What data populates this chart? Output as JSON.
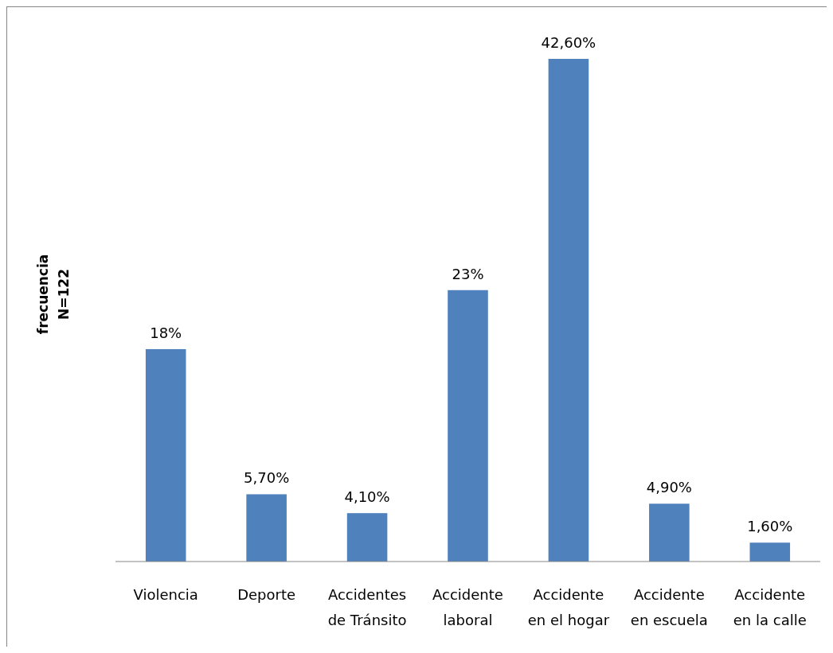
{
  "chart_data": {
    "type": "bar",
    "ylabel": "frecuencia N=122",
    "categories": [
      "Violencia",
      "Deporte",
      "Accidentes de Tránsito",
      "Accidente laboral",
      "Accidente en el hogar",
      "Accidente en escuela",
      "Accidente en la calle"
    ],
    "values": [
      18,
      5.7,
      4.1,
      23,
      42.6,
      4.9,
      1.6
    ],
    "value_labels": [
      "18%",
      "5,70%",
      "4,10%",
      "23%",
      "42,60%",
      "4,90%",
      "1,60%"
    ],
    "color": "#4f81bd"
  }
}
